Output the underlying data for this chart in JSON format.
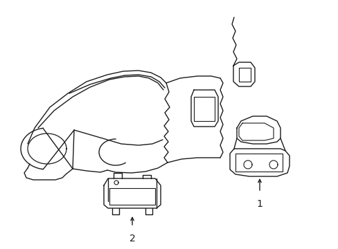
{
  "bg_color": "#ffffff",
  "line_color": "#1a1a1a",
  "line_width": 1.0,
  "fig_width": 4.89,
  "fig_height": 3.6,
  "dpi": 100,
  "label1": "1",
  "label2": "2"
}
